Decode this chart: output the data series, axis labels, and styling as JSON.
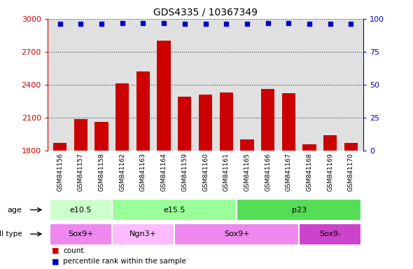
{
  "title": "GDS4335 / 10367349",
  "samples": [
    "GSM841156",
    "GSM841157",
    "GSM841158",
    "GSM841162",
    "GSM841163",
    "GSM841164",
    "GSM841159",
    "GSM841160",
    "GSM841161",
    "GSM841165",
    "GSM841166",
    "GSM841167",
    "GSM841168",
    "GSM841169",
    "GSM841170"
  ],
  "counts": [
    1870,
    2090,
    2060,
    2415,
    2520,
    2800,
    2290,
    2310,
    2330,
    1900,
    2360,
    2325,
    1855,
    1940,
    1870
  ],
  "percentile_ranks": [
    96,
    96,
    96,
    97,
    97,
    97,
    96,
    96,
    96,
    96,
    97,
    97,
    96,
    96,
    96
  ],
  "bar_color": "#cc0000",
  "dot_color": "#0000cc",
  "ylim_left": [
    1800,
    3000
  ],
  "ylim_right": [
    0,
    100
  ],
  "yticks_left": [
    1800,
    2100,
    2400,
    2700,
    3000
  ],
  "yticks_right": [
    0,
    25,
    50,
    75,
    100
  ],
  "age_groups": [
    {
      "label": "e10.5",
      "start": 0,
      "end": 3,
      "color": "#ccffcc"
    },
    {
      "label": "e15.5",
      "start": 3,
      "end": 9,
      "color": "#99ff99"
    },
    {
      "label": "p23",
      "start": 9,
      "end": 15,
      "color": "#55dd55"
    }
  ],
  "cell_type_groups": [
    {
      "label": "Sox9+",
      "start": 0,
      "end": 3,
      "color": "#ee88ee"
    },
    {
      "label": "Ngn3+",
      "start": 3,
      "end": 6,
      "color": "#ffbbff"
    },
    {
      "label": "Sox9+",
      "start": 6,
      "end": 12,
      "color": "#ee88ee"
    },
    {
      "label": "Sox9-",
      "start": 12,
      "end": 15,
      "color": "#cc44cc"
    }
  ],
  "legend_bar_color": "#cc0000",
  "legend_dot_color": "#0000cc",
  "background_color": "#ffffff",
  "plot_bg_color": "#e0e0e0",
  "tick_bg_color": "#c8c8c8"
}
